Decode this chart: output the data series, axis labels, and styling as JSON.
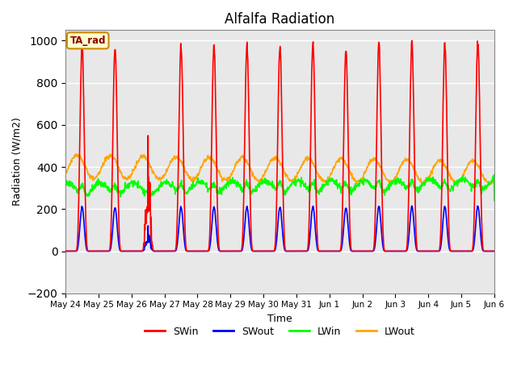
{
  "title": "Alfalfa Radiation",
  "xlabel": "Time",
  "ylabel": "Radiation (W/m2)",
  "ylim": [
    -200,
    1050
  ],
  "yticks": [
    -200,
    0,
    200,
    400,
    600,
    800,
    1000
  ],
  "background_color": "#e8e8e8",
  "grid_color": "white",
  "legend_labels": [
    "SWin",
    "SWout",
    "LWin",
    "LWout"
  ],
  "legend_colors": [
    "red",
    "blue",
    "lime",
    "orange"
  ],
  "ta_rad_label": "TA_rad",
  "ta_rad_box_facecolor": "#ffffcc",
  "ta_rad_box_edgecolor": "#cc8800",
  "ta_rad_text_color": "#8b0000",
  "line_width": 1.2,
  "xtick_labels": [
    "May 24",
    "May 25",
    "May 26",
    "May 27",
    "May 28",
    "May 29",
    "May 30",
    "May 31",
    "Jun 1",
    "Jun 2",
    "Jun 3",
    "Jun 4",
    "Jun 5",
    "Jun 6"
  ],
  "days": 13,
  "pts_per_day": 96,
  "SWin_peaks": [
    980,
    970,
    570,
    980,
    980,
    980,
    970,
    990,
    960,
    990,
    990,
    990,
    1000
  ],
  "cloudy_day": 2,
  "LWin_base": 290,
  "LWout_base": 380,
  "figsize": [
    6.4,
    4.8
  ],
  "dpi": 100
}
